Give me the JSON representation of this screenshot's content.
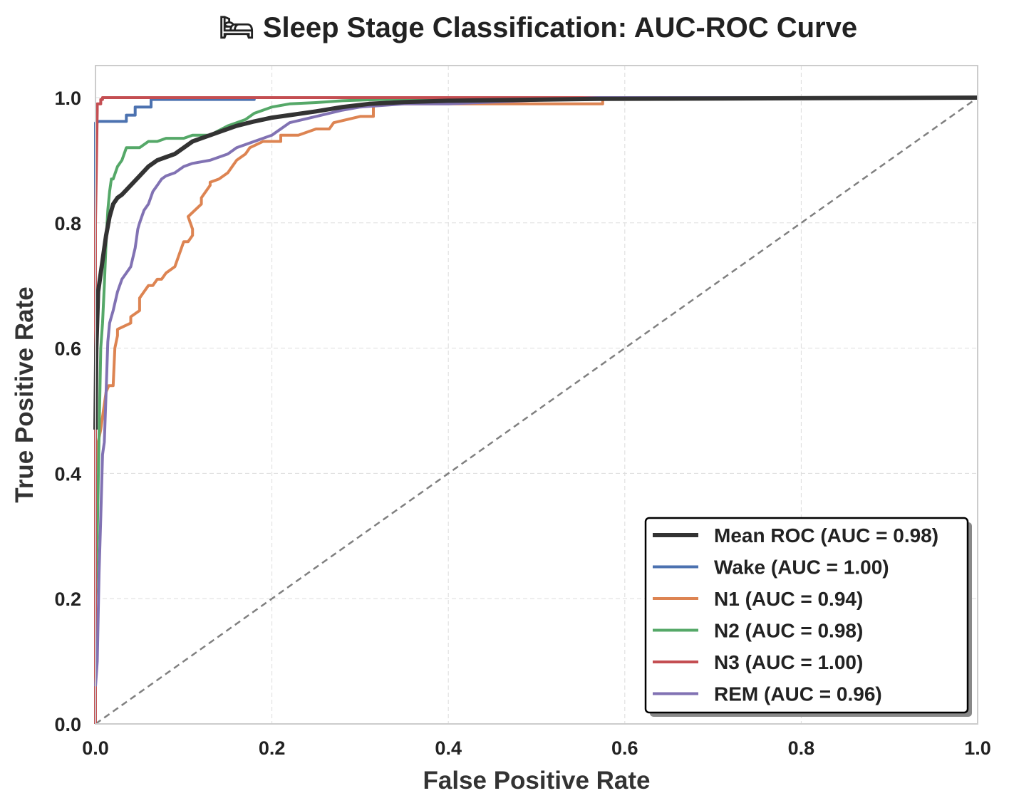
{
  "chart_data": {
    "type": "line",
    "title": "🛏 Sleep Stage Classification: AUC-ROC Curve",
    "xlabel": "False Positive Rate",
    "ylabel": "True Positive Rate",
    "xlim": [
      0,
      1
    ],
    "ylim": [
      0,
      1.05
    ],
    "xticks": [
      0.0,
      0.2,
      0.4,
      0.6,
      0.8,
      1.0
    ],
    "yticks": [
      0.0,
      0.2,
      0.4,
      0.6,
      0.8,
      1.0
    ],
    "xtick_labels": [
      "0.0",
      "0.2",
      "0.4",
      "0.6",
      "0.8",
      "1.0"
    ],
    "ytick_labels": [
      "0.0",
      "0.2",
      "0.4",
      "0.6",
      "0.8",
      "1.0"
    ],
    "grid": true,
    "legend_position": "lower-right",
    "diagonal": {
      "x": [
        0,
        1
      ],
      "y": [
        0,
        1
      ],
      "color": "#808080",
      "style": "dashed"
    },
    "series": [
      {
        "name": "Mean ROC (AUC = 0.98)",
        "color": "#333333",
        "width": 6,
        "x": [
          0,
          0.001,
          0.003,
          0.005,
          0.008,
          0.012,
          0.016,
          0.02,
          0.025,
          0.03,
          0.04,
          0.05,
          0.06,
          0.07,
          0.08,
          0.09,
          0.1,
          0.11,
          0.12,
          0.14,
          0.16,
          0.18,
          0.2,
          0.22,
          0.25,
          0.28,
          0.31,
          0.35,
          0.4,
          0.57,
          1.0
        ],
        "y": [
          0.47,
          0.6,
          0.69,
          0.71,
          0.74,
          0.78,
          0.81,
          0.83,
          0.84,
          0.845,
          0.86,
          0.875,
          0.89,
          0.9,
          0.905,
          0.91,
          0.92,
          0.93,
          0.935,
          0.945,
          0.955,
          0.962,
          0.968,
          0.972,
          0.978,
          0.985,
          0.99,
          0.993,
          0.995,
          0.998,
          1.0
        ]
      },
      {
        "name": "Wake (AUC = 1.00)",
        "color": "#4c72b0",
        "width": 4,
        "x": [
          0,
          0.0,
          0.004,
          0.035,
          0.035,
          0.045,
          0.045,
          0.063,
          0.063,
          0.18,
          0.18,
          1.0
        ],
        "y": [
          0,
          0.96,
          0.962,
          0.962,
          0.972,
          0.972,
          0.985,
          0.985,
          0.997,
          0.997,
          1.0,
          1.0
        ]
      },
      {
        "name": "N1 (AUC = 0.94)",
        "color": "#dd8452",
        "width": 4,
        "x": [
          0,
          0.0,
          0.003,
          0.006,
          0.009,
          0.012,
          0.015,
          0.02,
          0.022,
          0.025,
          0.025,
          0.04,
          0.04,
          0.05,
          0.05,
          0.055,
          0.06,
          0.065,
          0.07,
          0.075,
          0.08,
          0.09,
          0.1,
          0.105,
          0.11,
          0.11,
          0.105,
          0.12,
          0.12,
          0.13,
          0.13,
          0.14,
          0.15,
          0.155,
          0.16,
          0.17,
          0.175,
          0.19,
          0.21,
          0.21,
          0.23,
          0.25,
          0.265,
          0.27,
          0.3,
          0.315,
          0.315,
          0.4,
          0.4,
          0.575,
          0.575,
          1.0
        ],
        "y": [
          0,
          0.4,
          0.45,
          0.47,
          0.5,
          0.53,
          0.54,
          0.54,
          0.6,
          0.62,
          0.63,
          0.64,
          0.65,
          0.66,
          0.68,
          0.69,
          0.7,
          0.7,
          0.71,
          0.71,
          0.72,
          0.73,
          0.77,
          0.77,
          0.78,
          0.79,
          0.81,
          0.83,
          0.84,
          0.86,
          0.865,
          0.87,
          0.88,
          0.89,
          0.9,
          0.91,
          0.92,
          0.93,
          0.93,
          0.94,
          0.94,
          0.95,
          0.95,
          0.96,
          0.97,
          0.97,
          0.99,
          0.99,
          0.99,
          0.99,
          1.0,
          1.0
        ]
      },
      {
        "name": "N2 (AUC = 0.98)",
        "color": "#55a868",
        "width": 4,
        "x": [
          0,
          0.002,
          0.004,
          0.006,
          0.008,
          0.01,
          0.012,
          0.014,
          0.016,
          0.018,
          0.02,
          0.025,
          0.03,
          0.035,
          0.04,
          0.05,
          0.06,
          0.07,
          0.08,
          0.09,
          0.1,
          0.11,
          0.12,
          0.13,
          0.15,
          0.16,
          0.17,
          0.18,
          0.19,
          0.2,
          0.22,
          0.25,
          0.28,
          0.3,
          0.35,
          0.4,
          1.0
        ],
        "y": [
          0.19,
          0.3,
          0.46,
          0.6,
          0.64,
          0.7,
          0.77,
          0.82,
          0.85,
          0.87,
          0.87,
          0.89,
          0.9,
          0.92,
          0.92,
          0.92,
          0.93,
          0.93,
          0.935,
          0.935,
          0.935,
          0.94,
          0.94,
          0.94,
          0.955,
          0.96,
          0.965,
          0.975,
          0.98,
          0.985,
          0.99,
          0.992,
          0.995,
          0.996,
          0.998,
          1.0,
          1.0
        ]
      },
      {
        "name": "N3 (AUC = 1.00)",
        "color": "#c44e52",
        "width": 4,
        "x": [
          0,
          0.0,
          0.002,
          0.002,
          0.006,
          0.006,
          0.008,
          0.008,
          1.0
        ],
        "y": [
          0,
          0.8,
          0.98,
          0.99,
          0.99,
          0.997,
          0.997,
          1.0,
          1.0
        ]
      },
      {
        "name": "REM (AUC = 0.96)",
        "color": "#8172b3",
        "width": 4,
        "x": [
          0,
          0.002,
          0.004,
          0.006,
          0.008,
          0.01,
          0.012,
          0.014,
          0.016,
          0.018,
          0.02,
          0.025,
          0.03,
          0.035,
          0.04,
          0.045,
          0.048,
          0.05,
          0.055,
          0.06,
          0.065,
          0.07,
          0.075,
          0.08,
          0.09,
          0.1,
          0.11,
          0.13,
          0.15,
          0.16,
          0.18,
          0.2,
          0.22,
          0.25,
          0.28,
          0.3,
          0.35,
          0.4,
          0.57,
          1.0
        ],
        "y": [
          0.06,
          0.1,
          0.24,
          0.33,
          0.43,
          0.45,
          0.53,
          0.61,
          0.64,
          0.65,
          0.66,
          0.69,
          0.71,
          0.72,
          0.73,
          0.76,
          0.79,
          0.8,
          0.82,
          0.83,
          0.85,
          0.86,
          0.87,
          0.875,
          0.88,
          0.89,
          0.895,
          0.9,
          0.91,
          0.92,
          0.93,
          0.94,
          0.96,
          0.97,
          0.98,
          0.985,
          0.99,
          0.99,
          1.0,
          1.0
        ]
      }
    ]
  }
}
